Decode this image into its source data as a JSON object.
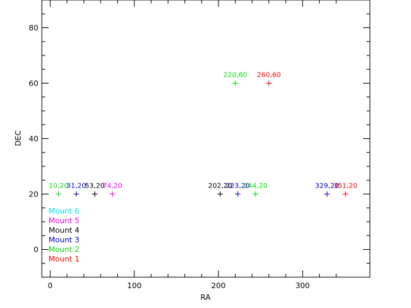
{
  "chart_data": {
    "type": "scatter",
    "title": "",
    "xlabel": "RA",
    "ylabel": "DEC",
    "xlim": [
      -10,
      380
    ],
    "ylim": [
      -10,
      90
    ],
    "x_ticks": [
      0,
      100,
      200,
      300
    ],
    "y_ticks": [
      0,
      20,
      40,
      60,
      80
    ],
    "grid": false,
    "legend_placement": "bottom-left",
    "marker": "+",
    "series": [
      {
        "name": "Mount 1",
        "color": "#ff0000",
        "points": [
          {
            "x": 260,
            "y": 60,
            "label": "260,60"
          },
          {
            "x": 351,
            "y": 20,
            "label": "351,20"
          }
        ]
      },
      {
        "name": "Mount 2",
        "color": "#00dd00",
        "points": [
          {
            "x": 10,
            "y": 20,
            "label": "10,20"
          },
          {
            "x": 220,
            "y": 60,
            "label": "220,60"
          },
          {
            "x": 244,
            "y": 20,
            "label": "244,20"
          }
        ]
      },
      {
        "name": "Mount 3",
        "color": "#0000cc",
        "points": [
          {
            "x": 31,
            "y": 20,
            "label": "31,20"
          },
          {
            "x": 223,
            "y": 20,
            "label": "223,20"
          },
          {
            "x": 329,
            "y": 20,
            "label": "329,20"
          }
        ]
      },
      {
        "name": "Mount 4",
        "color": "#000000",
        "points": [
          {
            "x": 53,
            "y": 20,
            "label": "53,20"
          },
          {
            "x": 202,
            "y": 20,
            "label": "202,20"
          }
        ]
      },
      {
        "name": "Mount 5",
        "color": "#ee00ee",
        "points": [
          {
            "x": 74,
            "y": 20,
            "label": "74,20"
          }
        ]
      },
      {
        "name": "Mount 6",
        "color": "#00e5e5",
        "points": []
      }
    ]
  }
}
